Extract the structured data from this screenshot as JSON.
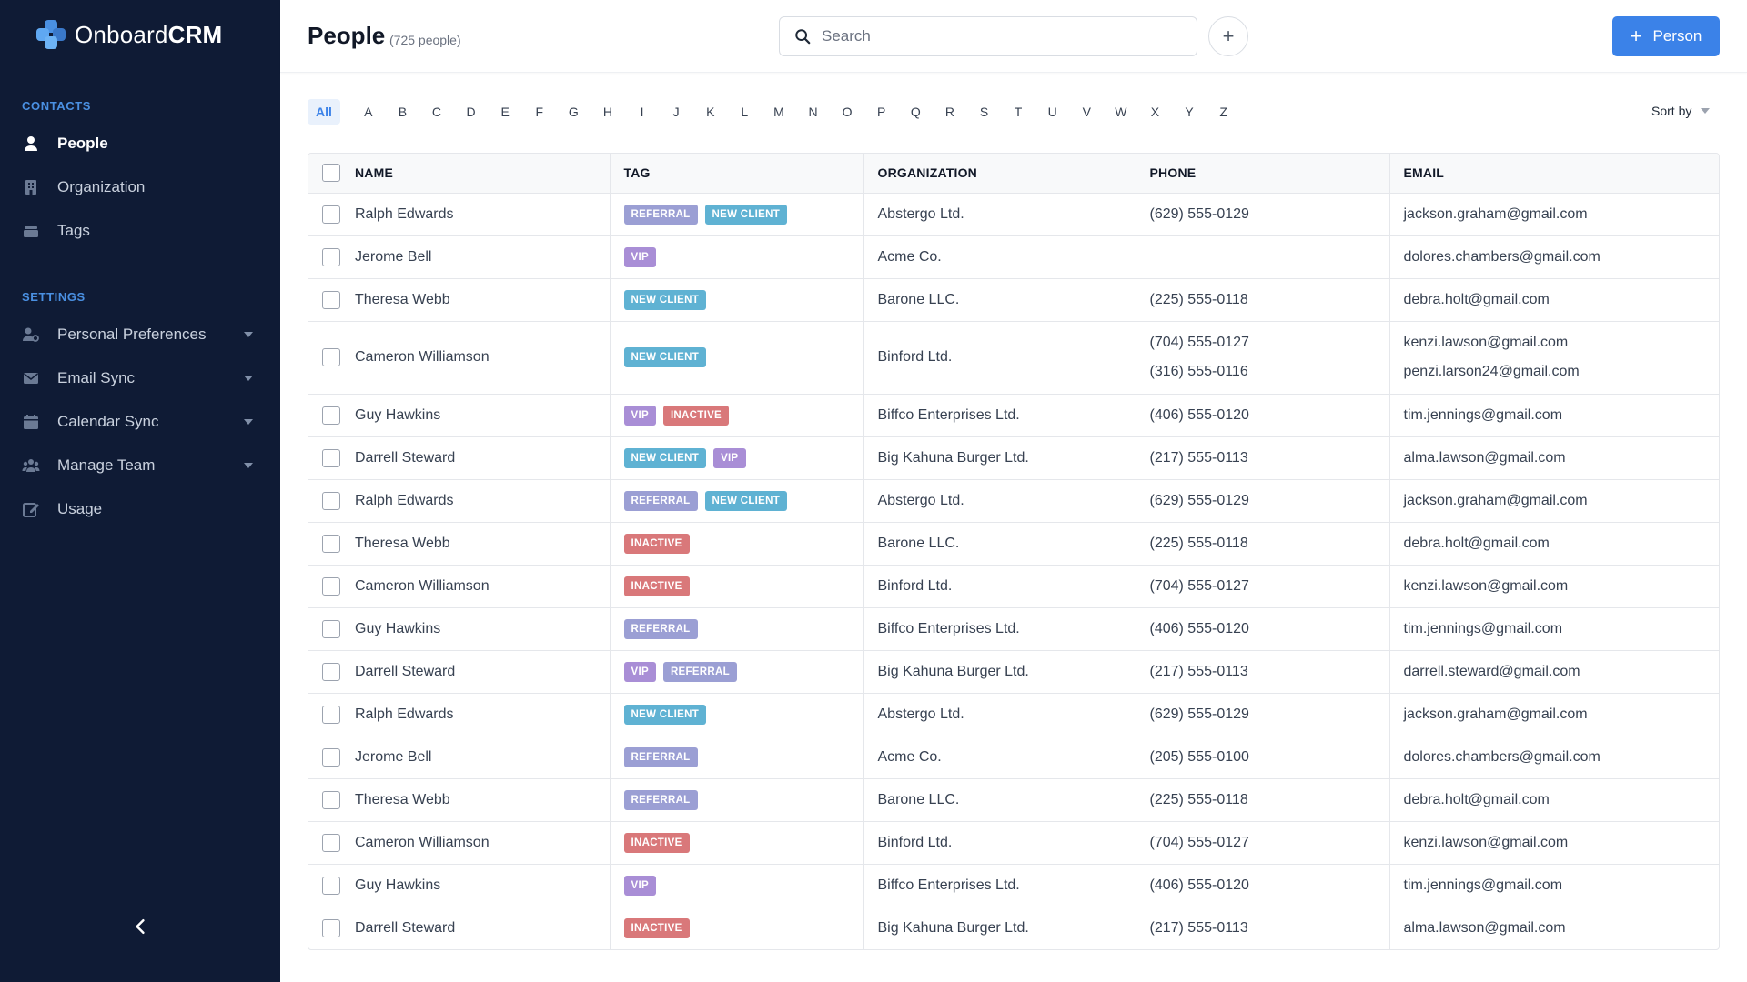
{
  "app": {
    "logo_bold": "Onboard",
    "logo_accent": "CRM"
  },
  "sidebar": {
    "contacts_label": "CONTACTS",
    "contacts_items": [
      {
        "label": "People",
        "icon": "person-icon",
        "active": true
      },
      {
        "label": "Organization",
        "icon": "building-icon"
      },
      {
        "label": "Tags",
        "icon": "tags-icon"
      }
    ],
    "settings_label": "SETTINGS",
    "settings_items": [
      {
        "label": "Personal Preferences",
        "icon": "user-settings-icon",
        "expandable": true
      },
      {
        "label": "Email Sync",
        "icon": "envelope-icon",
        "expandable": true
      },
      {
        "label": "Calendar Sync",
        "icon": "calendar-icon",
        "expandable": true
      },
      {
        "label": "Manage Team",
        "icon": "team-icon",
        "expandable": true
      },
      {
        "label": "Usage",
        "icon": "edit-icon",
        "expandable": false
      }
    ]
  },
  "header": {
    "title": "People",
    "count": "(725 people)",
    "search_placeholder": "Search",
    "add_icon": "+",
    "add_person_label": "Person"
  },
  "filter": {
    "all_label": "All",
    "letters": [
      "A",
      "B",
      "C",
      "D",
      "E",
      "F",
      "G",
      "H",
      "I",
      "J",
      "K",
      "L",
      "M",
      "N",
      "O",
      "P",
      "Q",
      "R",
      "S",
      "T",
      "U",
      "V",
      "W",
      "X",
      "Y",
      "Z"
    ],
    "sort_label": "Sort by"
  },
  "tag_colors": {
    "REFERRAL": "#9b9fd4",
    "NEW CLIENT": "#5fb2d3",
    "VIP": "#a98ed6",
    "INACTIVE": "#d9787a"
  },
  "table": {
    "columns": [
      "NAME",
      "TAG",
      "ORGANIZATION",
      "PHONE",
      "EMAIL"
    ],
    "rows": [
      {
        "name": "Ralph Edwards",
        "tags": [
          "REFERRAL",
          "NEW CLIENT"
        ],
        "org": "Abstergo Ltd.",
        "phones": [
          "(629) 555-0129"
        ],
        "emails": [
          "jackson.graham@gmail.com"
        ]
      },
      {
        "name": "Jerome Bell",
        "tags": [
          "VIP"
        ],
        "org": "Acme Co.",
        "phones": [],
        "emails": [
          "dolores.chambers@gmail.com"
        ]
      },
      {
        "name": "Theresa Webb",
        "tags": [
          "NEW CLIENT"
        ],
        "org": "Barone LLC.",
        "phones": [
          "(225) 555-0118"
        ],
        "emails": [
          "debra.holt@gmail.com"
        ]
      },
      {
        "name": "Cameron Williamson",
        "tags": [
          "NEW CLIENT"
        ],
        "org": "Binford Ltd.",
        "phones": [
          "(704) 555-0127",
          "(316) 555-0116"
        ],
        "emails": [
          "kenzi.lawson@gmail.com",
          "penzi.larson24@gmail.com"
        ]
      },
      {
        "name": "Guy Hawkins",
        "tags": [
          "VIP",
          "INACTIVE"
        ],
        "org": "Biffco Enterprises Ltd.",
        "phones": [
          "(406) 555-0120"
        ],
        "emails": [
          "tim.jennings@gmail.com"
        ]
      },
      {
        "name": "Darrell Steward",
        "tags": [
          "NEW CLIENT",
          "VIP"
        ],
        "org": "Big Kahuna Burger Ltd.",
        "phones": [
          "(217) 555-0113"
        ],
        "emails": [
          "alma.lawson@gmail.com"
        ]
      },
      {
        "name": "Ralph Edwards",
        "tags": [
          "REFERRAL",
          "NEW CLIENT"
        ],
        "org": "Abstergo Ltd.",
        "phones": [
          "(629) 555-0129"
        ],
        "emails": [
          "jackson.graham@gmail.com"
        ]
      },
      {
        "name": "Theresa Webb",
        "tags": [
          "INACTIVE"
        ],
        "org": "Barone LLC.",
        "phones": [
          "(225) 555-0118"
        ],
        "emails": [
          "debra.holt@gmail.com"
        ]
      },
      {
        "name": "Cameron Williamson",
        "tags": [
          "INACTIVE"
        ],
        "org": "Binford Ltd.",
        "phones": [
          "(704) 555-0127"
        ],
        "emails": [
          "kenzi.lawson@gmail.com"
        ]
      },
      {
        "name": "Guy Hawkins",
        "tags": [
          "REFERRAL"
        ],
        "org": "Biffco Enterprises Ltd.",
        "phones": [
          "(406) 555-0120"
        ],
        "emails": [
          "tim.jennings@gmail.com"
        ]
      },
      {
        "name": "Darrell Steward",
        "tags": [
          "VIP",
          "REFERRAL"
        ],
        "org": "Big Kahuna Burger Ltd.",
        "phones": [
          "(217) 555-0113"
        ],
        "emails": [
          "darrell.steward@gmail.com"
        ]
      },
      {
        "name": "Ralph Edwards",
        "tags": [
          "NEW CLIENT"
        ],
        "org": "Abstergo Ltd.",
        "phones": [
          "(629) 555-0129"
        ],
        "emails": [
          "jackson.graham@gmail.com"
        ]
      },
      {
        "name": "Jerome Bell",
        "tags": [
          "REFERRAL"
        ],
        "org": "Acme Co.",
        "phones": [
          "(205) 555-0100"
        ],
        "emails": [
          "dolores.chambers@gmail.com"
        ]
      },
      {
        "name": "Theresa Webb",
        "tags": [
          "REFERRAL"
        ],
        "org": "Barone LLC.",
        "phones": [
          "(225) 555-0118"
        ],
        "emails": [
          "debra.holt@gmail.com"
        ]
      },
      {
        "name": "Cameron Williamson",
        "tags": [
          "INACTIVE"
        ],
        "org": "Binford Ltd.",
        "phones": [
          "(704) 555-0127"
        ],
        "emails": [
          "kenzi.lawson@gmail.com"
        ]
      },
      {
        "name": "Guy Hawkins",
        "tags": [
          "VIP"
        ],
        "org": "Biffco Enterprises Ltd.",
        "phones": [
          "(406) 555-0120"
        ],
        "emails": [
          "tim.jennings@gmail.com"
        ]
      },
      {
        "name": "Darrell Steward",
        "tags": [
          "INACTIVE"
        ],
        "org": "Big Kahuna Burger Ltd.",
        "phones": [
          "(217) 555-0113"
        ],
        "emails": [
          "alma.lawson@gmail.com"
        ]
      }
    ]
  }
}
